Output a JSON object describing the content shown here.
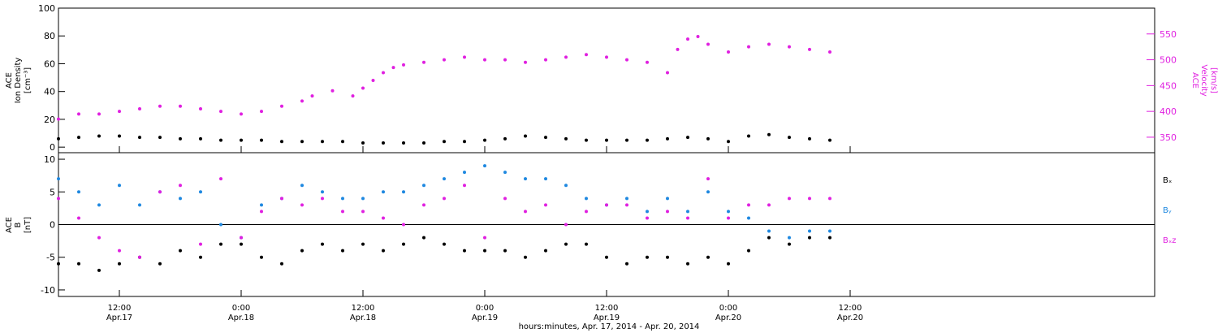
{
  "colors": {
    "density": "#000000",
    "velocity": "#e020e0",
    "bx": "#000000",
    "by": "#1e88e0",
    "bz": "#e020e0",
    "frame": "#000000"
  },
  "xaxis": {
    "title": "hours:minutes, Apr. 17, 2014 - Apr. 20, 2014",
    "range_hours": [
      6,
      114
    ],
    "ticks": [
      {
        "t": 12,
        "time": "12:00",
        "date": "Apr.17"
      },
      {
        "t": 24,
        "time": "0:00",
        "date": "Apr.18"
      },
      {
        "t": 36,
        "time": "12:00",
        "date": "Apr.18"
      },
      {
        "t": 48,
        "time": "0:00",
        "date": "Apr.19"
      },
      {
        "t": 60,
        "time": "12:00",
        "date": "Apr.19"
      },
      {
        "t": 72,
        "time": "0:00",
        "date": "Apr.20"
      },
      {
        "t": 84,
        "time": "12:00",
        "date": "Apr.20"
      }
    ]
  },
  "chart_data": [
    {
      "type": "scatter",
      "panel": "plasma",
      "grid": false,
      "ylabel_left": [
        "ACE",
        "Ion Density",
        "[cm⁻³]"
      ],
      "ylabel_right": [
        "ACE",
        "Velocity",
        "[km/s]"
      ],
      "ylim_left": [
        -4,
        100
      ],
      "yticks_left": [
        0,
        20,
        40,
        60,
        80,
        100
      ],
      "ylim_right": [
        320,
        600
      ],
      "yticks_right": [
        350,
        400,
        450,
        500,
        550
      ],
      "series": [
        {
          "axis": "left",
          "color_key": "density",
          "x": [
            6,
            8,
            10,
            12,
            14,
            16,
            18,
            20,
            22,
            24,
            26,
            28,
            30,
            32,
            34,
            36,
            38,
            40,
            42,
            44,
            46,
            48,
            50,
            52,
            54,
            56,
            58,
            60,
            62,
            64,
            66,
            68,
            70,
            72,
            74,
            76,
            78,
            80,
            82
          ],
          "y": [
            6,
            7,
            8,
            8,
            7,
            7,
            6,
            6,
            5,
            5,
            5,
            4,
            4,
            4,
            4,
            3,
            3,
            3,
            3,
            4,
            4,
            5,
            6,
            8,
            7,
            6,
            5,
            5,
            5,
            5,
            6,
            7,
            6,
            4,
            8,
            9,
            7,
            6,
            5
          ]
        },
        {
          "axis": "right",
          "color_key": "velocity",
          "x": [
            6,
            8,
            10,
            12,
            14,
            16,
            18,
            20,
            22,
            24,
            26,
            28,
            30,
            31,
            33,
            35,
            36,
            37,
            38,
            39,
            40,
            42,
            44,
            46,
            48,
            50,
            52,
            54,
            56,
            58,
            60,
            62,
            64,
            66,
            67,
            68,
            69,
            70,
            72,
            74,
            76,
            78,
            80,
            82
          ],
          "y": [
            385,
            395,
            395,
            400,
            405,
            410,
            410,
            405,
            400,
            395,
            400,
            410,
            420,
            430,
            440,
            430,
            445,
            460,
            475,
            485,
            490,
            495,
            500,
            505,
            500,
            500,
            495,
            500,
            505,
            510,
            505,
            500,
            495,
            475,
            520,
            540,
            545,
            530,
            515,
            525,
            530,
            525,
            520,
            515
          ]
        }
      ]
    },
    {
      "type": "scatter",
      "panel": "field",
      "grid": false,
      "zero_line": true,
      "ylabel_left": [
        "ACE",
        "B",
        "[nT]"
      ],
      "ylim": [
        -11,
        11
      ],
      "yticks": [
        -10,
        -5,
        0,
        5,
        10
      ],
      "legend_position": "right",
      "series": [
        {
          "name": "Bₓ",
          "color_key": "bx",
          "x": [
            6,
            8,
            10,
            12,
            14,
            16,
            18,
            20,
            22,
            24,
            26,
            28,
            30,
            32,
            34,
            36,
            38,
            40,
            42,
            44,
            46,
            48,
            50,
            52,
            54,
            56,
            58,
            60,
            62,
            64,
            66,
            68,
            70,
            72,
            74,
            76,
            78,
            80,
            82
          ],
          "y": [
            -6,
            -6,
            -7,
            -6,
            -5,
            -6,
            -4,
            -5,
            -3,
            -3,
            -5,
            -6,
            -4,
            -3,
            -4,
            -3,
            -4,
            -3,
            -2,
            -3,
            -4,
            -4,
            -4,
            -5,
            -4,
            -3,
            -3,
            -5,
            -6,
            -5,
            -5,
            -6,
            -5,
            -6,
            -4,
            -2,
            -3,
            -2,
            -2
          ]
        },
        {
          "name": "Bᵧ",
          "color_key": "by",
          "x": [
            6,
            8,
            10,
            12,
            14,
            16,
            18,
            20,
            22,
            24,
            26,
            28,
            30,
            32,
            34,
            36,
            38,
            40,
            42,
            44,
            46,
            48,
            50,
            52,
            54,
            56,
            58,
            60,
            62,
            64,
            66,
            68,
            70,
            72,
            74,
            76,
            78,
            80,
            82
          ],
          "y": [
            7,
            5,
            3,
            6,
            3,
            5,
            4,
            5,
            0,
            -2,
            3,
            4,
            6,
            5,
            4,
            4,
            5,
            5,
            6,
            7,
            8,
            9,
            8,
            7,
            7,
            6,
            4,
            3,
            4,
            2,
            4,
            2,
            5,
            2,
            1,
            -1,
            -2,
            -1,
            -1
          ]
        },
        {
          "name": "Bₓz",
          "color_key": "bz",
          "x": [
            6,
            8,
            10,
            12,
            14,
            16,
            18,
            20,
            22,
            24,
            26,
            28,
            30,
            32,
            34,
            36,
            38,
            40,
            42,
            44,
            46,
            48,
            50,
            52,
            54,
            56,
            58,
            60,
            62,
            64,
            66,
            68,
            70,
            72,
            74,
            76,
            78,
            80,
            82
          ],
          "y": [
            4,
            1,
            -2,
            -4,
            -5,
            5,
            6,
            -3,
            7,
            -2,
            2,
            4,
            3,
            4,
            2,
            2,
            1,
            0,
            3,
            4,
            6,
            -2,
            4,
            2,
            3,
            0,
            2,
            3,
            3,
            1,
            2,
            1,
            7,
            1,
            3,
            3,
            4,
            4,
            4
          ]
        }
      ]
    }
  ]
}
